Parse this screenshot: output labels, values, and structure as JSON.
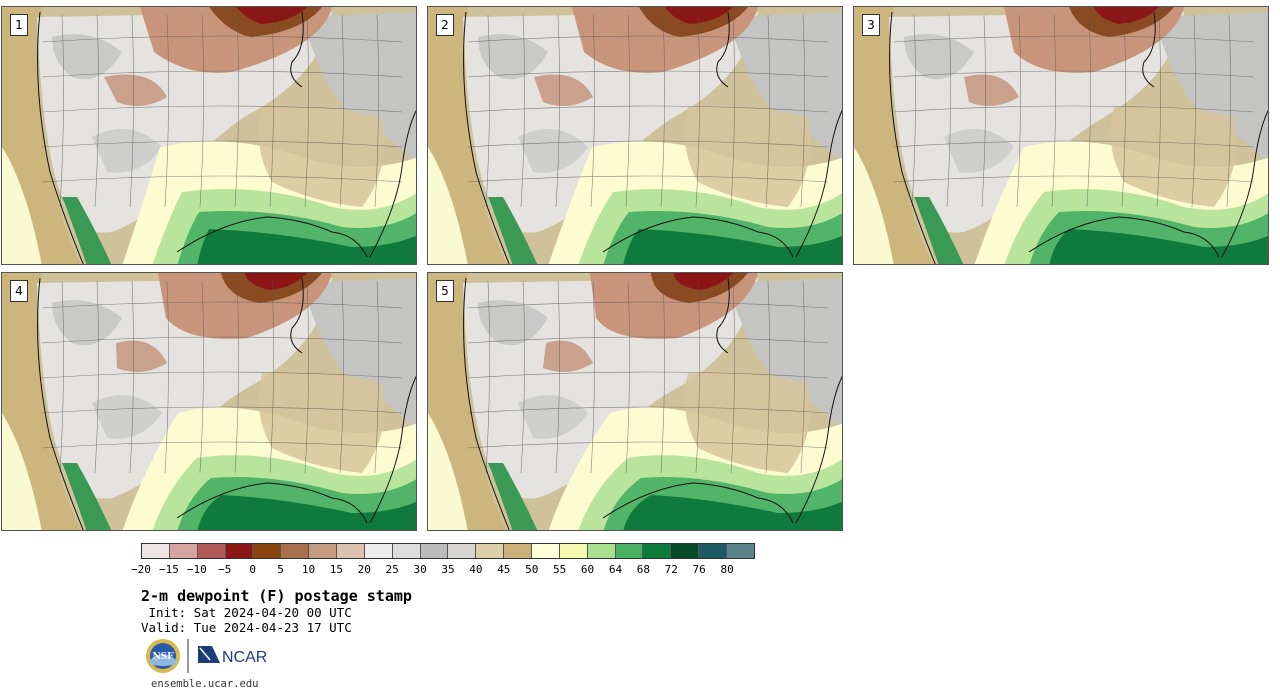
{
  "panels": [
    {
      "label": "1",
      "variant": 1
    },
    {
      "label": "2",
      "variant": 2
    },
    {
      "label": "3",
      "variant": 3
    },
    {
      "label": "4",
      "variant": 4
    },
    {
      "label": "5",
      "variant": 5
    }
  ],
  "colorbar": {
    "colors": [
      "#f0e4e4",
      "#d6a3a3",
      "#b05a5a",
      "#8a1616",
      "#8a4410",
      "#a8704a",
      "#c49b7f",
      "#dcc2b0",
      "#ececec",
      "#dedede",
      "#bcbcbc",
      "#d8d6d0",
      "#dcd0a8",
      "#ccb07a",
      "#ffffd8",
      "#f4f8b0",
      "#a8e090",
      "#48b060",
      "#0c7c3c",
      "#064a28",
      "#1c5a64",
      "#5a8488"
    ],
    "ticks": [
      "−20",
      "−15",
      "−10",
      "−5",
      "0",
      "5",
      "10",
      "15",
      "20",
      "25",
      "30",
      "35",
      "40",
      "45",
      "50",
      "55",
      "60",
      "64",
      "68",
      "72",
      "76",
      "80"
    ]
  },
  "title": "2-m dewpoint (F) postage stamp",
  "init": " Init: Sat 2024-04-20 00 UTC",
  "valid": "Valid: Tue 2024-04-23 17 UTC",
  "logos": {
    "nsf": "NSF",
    "ncar": "NCAR"
  },
  "url": "ensemble.ucar.edu"
}
